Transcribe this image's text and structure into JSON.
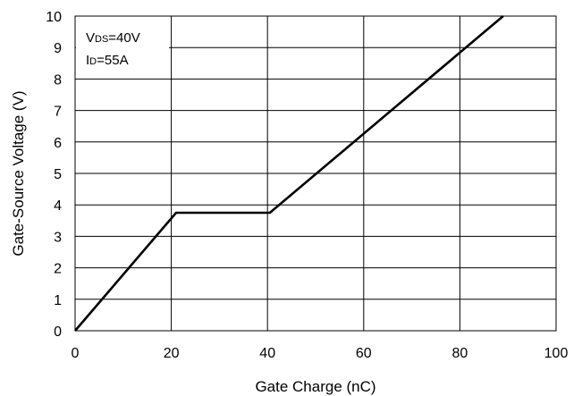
{
  "chart_data": {
    "type": "line",
    "title": "",
    "xlabel": "Gate Charge (nC)",
    "ylabel": "Gate-Source Voltage (V)",
    "xlim": [
      0,
      100
    ],
    "ylim": [
      0,
      10
    ],
    "xticks": [
      0,
      20,
      40,
      60,
      80,
      100
    ],
    "yticks": [
      0,
      1,
      2,
      3,
      4,
      5,
      6,
      7,
      8,
      9,
      10
    ],
    "grid": true,
    "series": [
      {
        "x": [
          0,
          21,
          40.5,
          89
        ],
        "y": [
          0,
          3.75,
          3.75,
          10
        ]
      }
    ],
    "annotation": {
      "vds_main": "V",
      "vds_sub": "DS",
      "vds_value": "=40V",
      "id_main": "I",
      "id_sub": "D",
      "id_value": "=55A"
    },
    "colors": {
      "line": "#000000",
      "grid": "#000000",
      "background": "#ffffff"
    }
  }
}
